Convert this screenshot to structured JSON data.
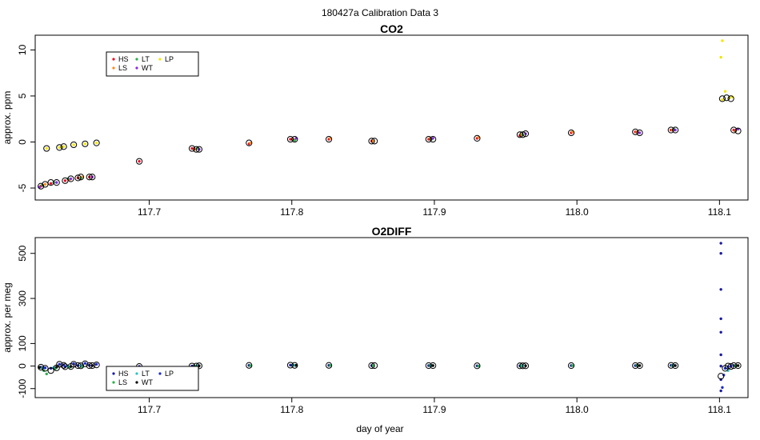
{
  "figure": {
    "title": "180427a   Calibration Data 3",
    "xlabel": "day of year"
  },
  "chart_data": [
    {
      "type": "scatter",
      "title": "CO2",
      "ylabel": "approx. ppm",
      "xlabel": "",
      "xlim": [
        117.62,
        118.12
      ],
      "ylim": [
        -6.3,
        11.6
      ],
      "xticks": [
        117.7,
        117.8,
        117.9,
        118.0,
        118.1
      ],
      "xtick_labels": [
        "117.7",
        "117.8",
        "117.9",
        "118.0",
        "118.1"
      ],
      "yticks": [
        -5,
        0,
        5,
        10
      ],
      "ytick_labels": [
        "-5",
        "0",
        "5",
        "10"
      ],
      "legend": {
        "position": "top-left",
        "columns": 3
      },
      "series": [
        {
          "name": "HS",
          "color": "#e8102a",
          "points": [
            [
              117.624,
              -4.8
            ],
            [
              117.631,
              -4.5
            ],
            [
              117.641,
              -4.2
            ],
            [
              117.65,
              -3.9
            ],
            [
              117.658,
              -3.8
            ],
            [
              117.693,
              -2.1
            ],
            [
              117.73,
              -0.7
            ],
            [
              117.77,
              -0.2
            ],
            [
              117.799,
              0.3
            ],
            [
              117.826,
              0.3
            ],
            [
              117.856,
              0.1
            ],
            [
              117.896,
              0.3
            ],
            [
              117.93,
              0.4
            ],
            [
              117.96,
              0.7
            ],
            [
              117.996,
              1.0
            ],
            [
              118.041,
              1.1
            ],
            [
              118.066,
              1.3
            ],
            [
              118.11,
              1.3
            ]
          ]
        },
        {
          "name": "LS",
          "color": "#ff8c1a",
          "points": [
            [
              117.627,
              -4.6
            ],
            [
              117.644,
              -4.1
            ],
            [
              117.653,
              -3.8
            ],
            [
              117.732,
              -0.8
            ],
            [
              117.771,
              -0.1
            ],
            [
              117.801,
              0.3
            ],
            [
              117.827,
              0.4
            ],
            [
              117.857,
              0.1
            ],
            [
              117.897,
              0.4
            ],
            [
              117.931,
              0.5
            ],
            [
              117.961,
              0.8
            ],
            [
              117.997,
              1.1
            ],
            [
              118.042,
              1.1
            ],
            [
              118.067,
              1.3
            ],
            [
              118.111,
              1.2
            ]
          ]
        },
        {
          "name": "LT",
          "color": "#2ab04a",
          "points": [
            [
              117.625,
              -4.7
            ],
            [
              117.633,
              -4.4
            ],
            [
              117.643,
              -4.0
            ],
            [
              117.652,
              -3.9
            ],
            [
              117.734,
              -0.7
            ],
            [
              117.802,
              0.2
            ],
            [
              117.898,
              0.3
            ],
            [
              117.962,
              0.8
            ],
            [
              118.068,
              1.4
            ]
          ]
        },
        {
          "name": "WT",
          "color": "#8a2be2",
          "points": [
            [
              117.623,
              -4.9
            ],
            [
              117.635,
              -4.4
            ],
            [
              117.645,
              -4.0
            ],
            [
              117.66,
              -3.8
            ],
            [
              117.735,
              -0.8
            ],
            [
              117.803,
              0.4
            ],
            [
              117.899,
              0.4
            ],
            [
              117.964,
              0.9
            ],
            [
              118.044,
              1.0
            ],
            [
              118.069,
              1.3
            ],
            [
              118.113,
              1.4
            ]
          ]
        },
        {
          "name": "LP",
          "color": "#f2e600",
          "points": [
            [
              117.628,
              -0.7
            ],
            [
              117.637,
              -0.6
            ],
            [
              117.64,
              -0.5
            ],
            [
              117.647,
              -0.3
            ],
            [
              117.655,
              -0.2
            ],
            [
              117.663,
              -0.1
            ],
            [
              118.102,
              4.6
            ],
            [
              118.104,
              5.5
            ],
            [
              118.107,
              4.8
            ],
            [
              118.109,
              4.9
            ],
            [
              118.101,
              9.2
            ],
            [
              118.102,
              11.0
            ]
          ]
        }
      ],
      "means": [
        [
          117.624,
          -4.8
        ],
        [
          117.627,
          -4.6
        ],
        [
          117.631,
          -4.4
        ],
        [
          117.635,
          -4.4
        ],
        [
          117.628,
          -0.7
        ],
        [
          117.637,
          -0.6
        ],
        [
          117.64,
          -0.5
        ],
        [
          117.641,
          -4.2
        ],
        [
          117.645,
          -4.0
        ],
        [
          117.647,
          -0.3
        ],
        [
          117.65,
          -3.9
        ],
        [
          117.652,
          -3.8
        ],
        [
          117.655,
          -0.2
        ],
        [
          117.658,
          -3.8
        ],
        [
          117.66,
          -3.8
        ],
        [
          117.663,
          -0.1
        ],
        [
          117.693,
          -2.1
        ],
        [
          117.73,
          -0.7
        ],
        [
          117.733,
          -0.8
        ],
        [
          117.735,
          -0.8
        ],
        [
          117.77,
          -0.1
        ],
        [
          117.799,
          0.3
        ],
        [
          117.802,
          0.3
        ],
        [
          117.826,
          0.3
        ],
        [
          117.856,
          0.1
        ],
        [
          117.858,
          0.1
        ],
        [
          117.896,
          0.3
        ],
        [
          117.899,
          0.3
        ],
        [
          117.93,
          0.4
        ],
        [
          117.96,
          0.8
        ],
        [
          117.962,
          0.8
        ],
        [
          117.964,
          0.9
        ],
        [
          117.996,
          1.0
        ],
        [
          118.041,
          1.1
        ],
        [
          118.044,
          1.0
        ],
        [
          118.066,
          1.3
        ],
        [
          118.069,
          1.3
        ],
        [
          118.102,
          4.7
        ],
        [
          118.105,
          4.8
        ],
        [
          118.108,
          4.7
        ],
        [
          118.11,
          1.3
        ],
        [
          118.113,
          1.2
        ]
      ]
    },
    {
      "type": "scatter",
      "title": "O2DIFF",
      "ylabel": "approx. per meg",
      "xlabel": "day of year",
      "xlim": [
        117.62,
        118.12
      ],
      "ylim": [
        -140,
        570
      ],
      "xticks": [
        117.7,
        117.8,
        117.9,
        118.0,
        118.1
      ],
      "xtick_labels": [
        "117.7",
        "117.8",
        "117.9",
        "118.0",
        "118.1"
      ],
      "yticks": [
        -100,
        0,
        100,
        300,
        500
      ],
      "ytick_labels": [
        "-100",
        "0",
        "100",
        "300",
        "500"
      ],
      "legend": {
        "position": "bottom-left",
        "columns": 3
      },
      "series": [
        {
          "name": "HS",
          "color": "#1a1aa0",
          "points": [
            [
              117.624,
              -5
            ],
            [
              117.631,
              -10
            ],
            [
              117.641,
              -3
            ],
            [
              117.65,
              2
            ],
            [
              117.658,
              3
            ],
            [
              117.693,
              -2
            ],
            [
              117.73,
              0
            ],
            [
              117.77,
              3
            ],
            [
              117.799,
              4
            ],
            [
              117.826,
              3
            ],
            [
              117.856,
              2
            ],
            [
              117.896,
              2
            ],
            [
              117.93,
              1
            ],
            [
              117.96,
              1
            ],
            [
              117.996,
              2
            ],
            [
              118.041,
              2
            ],
            [
              118.066,
              3
            ],
            [
              118.101,
              -110
            ],
            [
              118.101,
              -60
            ],
            [
              118.101,
              0
            ],
            [
              118.101,
              50
            ],
            [
              118.101,
              150
            ],
            [
              118.101,
              210
            ],
            [
              118.101,
              340
            ],
            [
              118.101,
              500
            ],
            [
              118.101,
              545
            ],
            [
              118.11,
              2
            ]
          ]
        },
        {
          "name": "LS",
          "color": "#2ab04a",
          "points": [
            [
              117.626,
              -20
            ],
            [
              117.628,
              -35
            ],
            [
              117.634,
              -12
            ],
            [
              117.644,
              -5
            ],
            [
              117.653,
              -4
            ],
            [
              117.732,
              -1
            ],
            [
              117.771,
              2
            ],
            [
              117.801,
              4
            ],
            [
              117.827,
              3
            ],
            [
              117.857,
              2
            ],
            [
              117.897,
              2
            ],
            [
              117.931,
              0
            ],
            [
              117.961,
              1
            ],
            [
              117.997,
              2
            ],
            [
              118.042,
              3
            ],
            [
              118.067,
              2
            ],
            [
              118.111,
              1
            ]
          ]
        },
        {
          "name": "LT",
          "color": "#29c3c8",
          "points": [
            [
              117.625,
              -8
            ],
            [
              117.633,
              -6
            ],
            [
              117.643,
              0
            ],
            [
              117.652,
              2
            ],
            [
              117.734,
              1
            ],
            [
              117.802,
              3
            ],
            [
              117.898,
              3
            ],
            [
              117.962,
              2
            ],
            [
              118.068,
              3
            ],
            [
              118.106,
              -20
            ]
          ]
        },
        {
          "name": "WT",
          "color": "#000000",
          "points": [
            [
              117.623,
              -6
            ],
            [
              117.635,
              -5
            ],
            [
              117.645,
              -2
            ],
            [
              117.66,
              2
            ],
            [
              117.735,
              1
            ],
            [
              117.803,
              3
            ],
            [
              117.899,
              2
            ],
            [
              117.964,
              1
            ],
            [
              118.044,
              2
            ],
            [
              118.069,
              2
            ],
            [
              118.113,
              2
            ]
          ]
        },
        {
          "name": "LP",
          "color": "#1a2ad0",
          "points": [
            [
              117.627,
              -8
            ],
            [
              117.637,
              8
            ],
            [
              117.64,
              5
            ],
            [
              117.647,
              10
            ],
            [
              117.655,
              12
            ],
            [
              117.663,
              8
            ],
            [
              118.102,
              -95
            ],
            [
              118.103,
              -40
            ],
            [
              118.104,
              -10
            ],
            [
              118.106,
              -3
            ],
            [
              118.108,
              0
            ]
          ]
        }
      ],
      "means": [
        [
          117.624,
          -5
        ],
        [
          117.627,
          -10
        ],
        [
          117.631,
          -20
        ],
        [
          117.635,
          -8
        ],
        [
          117.637,
          8
        ],
        [
          117.64,
          3
        ],
        [
          117.641,
          -3
        ],
        [
          117.645,
          -2
        ],
        [
          117.647,
          8
        ],
        [
          117.65,
          2
        ],
        [
          117.652,
          1
        ],
        [
          117.655,
          10
        ],
        [
          117.658,
          2
        ],
        [
          117.66,
          2
        ],
        [
          117.663,
          5
        ],
        [
          117.693,
          -2
        ],
        [
          117.73,
          0
        ],
        [
          117.733,
          0
        ],
        [
          117.735,
          1
        ],
        [
          117.77,
          3
        ],
        [
          117.799,
          4
        ],
        [
          117.802,
          3
        ],
        [
          117.826,
          3
        ],
        [
          117.856,
          2
        ],
        [
          117.858,
          2
        ],
        [
          117.896,
          2
        ],
        [
          117.899,
          2
        ],
        [
          117.93,
          1
        ],
        [
          117.96,
          1
        ],
        [
          117.962,
          1
        ],
        [
          117.964,
          1
        ],
        [
          117.996,
          2
        ],
        [
          118.041,
          2
        ],
        [
          118.044,
          2
        ],
        [
          118.066,
          3
        ],
        [
          118.069,
          2
        ],
        [
          118.101,
          -45
        ],
        [
          118.104,
          -10
        ],
        [
          118.106,
          0
        ],
        [
          118.108,
          -2
        ],
        [
          118.11,
          2
        ],
        [
          118.113,
          2
        ]
      ]
    }
  ]
}
